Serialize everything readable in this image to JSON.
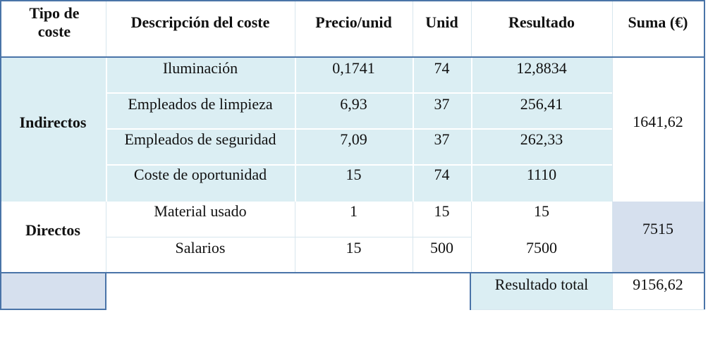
{
  "headers": {
    "tipo": "Tipo de coste",
    "descripcion": "Descripción del coste",
    "precio": "Precio/unid",
    "unid": "Unid",
    "resultado": "Resultado",
    "suma": "Suma (€)"
  },
  "groups": [
    {
      "tipo": "Indirectos",
      "suma": "1641,62",
      "rows": [
        {
          "descripcion": "Iluminación",
          "precio": "0,1741",
          "unid": "74",
          "resultado": "12,8834"
        },
        {
          "descripcion": "Empleados de limpieza",
          "precio": "6,93",
          "unid": "37",
          "resultado": "256,41"
        },
        {
          "descripcion": "Empleados de seguridad",
          "precio": "7,09",
          "unid": "37",
          "resultado": "262,33"
        },
        {
          "descripcion": "Coste de oportunidad",
          "precio": "15",
          "unid": "74",
          "resultado": "1110"
        }
      ]
    },
    {
      "tipo": "Directos",
      "suma": "7515",
      "rows": [
        {
          "descripcion": "Material usado",
          "precio": "1",
          "unid": "15",
          "resultado": "15"
        },
        {
          "descripcion": "Salarios",
          "precio": "15",
          "unid": "500",
          "resultado": "7500"
        }
      ]
    }
  ],
  "total": {
    "label": "Resultado total",
    "value": "9156,62"
  },
  "colors": {
    "border": "#4a74a8",
    "light_blue": "#dbeef3",
    "medium_blue": "#d6e0ee"
  }
}
